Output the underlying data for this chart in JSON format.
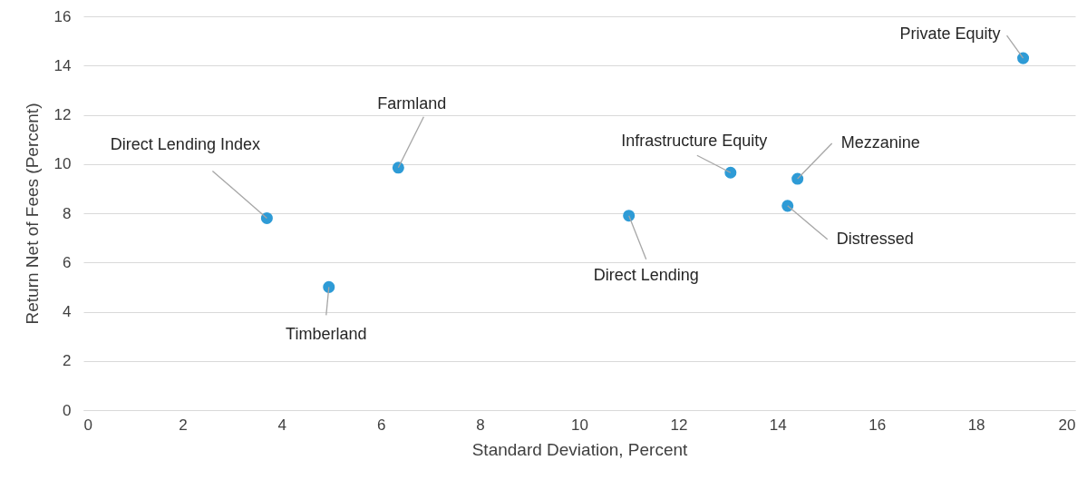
{
  "chart_data": {
    "type": "scatter",
    "xlabel": "Standard Deviation, Percent",
    "ylabel": "Return Net of Fees (Percent)",
    "x": [
      3.7,
      4.95,
      6.35,
      11.0,
      13.05,
      14.4,
      14.2,
      18.95
    ],
    "series": [
      {
        "color": "#2e9bd6",
        "values": [
          7.8,
          5.0,
          9.85,
          7.9,
          9.65,
          9.4,
          8.3,
          14.3
        ]
      }
    ],
    "xlim": [
      0,
      20
    ],
    "xticks": [
      0,
      2,
      4,
      6,
      8,
      10,
      12,
      14,
      16,
      18,
      20
    ],
    "ylim": [
      0,
      16
    ],
    "yticks": [
      0,
      2,
      4,
      6,
      8,
      10,
      12,
      14,
      16
    ],
    "grid": "y",
    "marker": "circle",
    "annotations": [
      {
        "text": "Direct Lending Index",
        "x": 3.7,
        "y": 7.8
      },
      {
        "text": "Timberland",
        "x": 4.95,
        "y": 5.0
      },
      {
        "text": "Farmland",
        "x": 6.35,
        "y": 9.85
      },
      {
        "text": "Direct Lending",
        "x": 11.0,
        "y": 7.9
      },
      {
        "text": "Infrastructure Equity",
        "x": 13.05,
        "y": 9.65
      },
      {
        "text": "Mezzanine",
        "x": 14.4,
        "y": 9.4
      },
      {
        "text": "Distressed",
        "x": 14.2,
        "y": 8.3
      },
      {
        "text": "Private Equity",
        "x": 18.95,
        "y": 14.3
      }
    ]
  }
}
